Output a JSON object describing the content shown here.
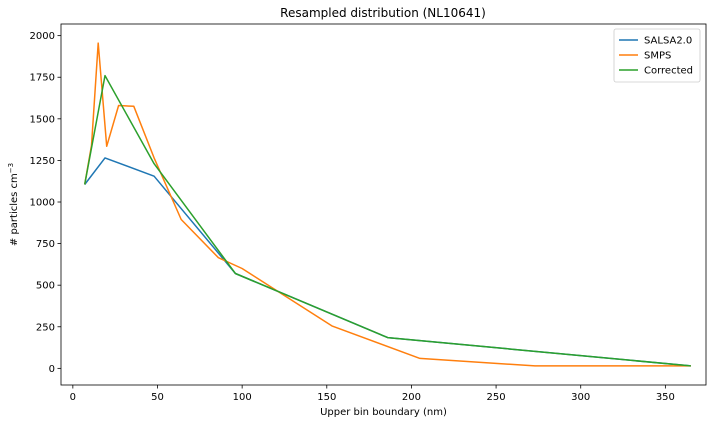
{
  "chart_data": {
    "type": "line",
    "title": "Resampled distribution (NL10641)",
    "xlabel": "Upper bin boundary (nm)",
    "ylabel": "# particles cm",
    "ylabel_superscript": "−3",
    "xlim": [
      -7,
      374
    ],
    "ylim": [
      -100,
      2070
    ],
    "xticks": [
      0,
      50,
      100,
      150,
      200,
      250,
      300,
      350
    ],
    "yticks": [
      0,
      250,
      500,
      750,
      1000,
      1250,
      1500,
      1750,
      2000
    ],
    "legend_position": "top-right",
    "series": [
      {
        "name": "SALSA2.0",
        "color": "#1f77b4",
        "x": [
          7,
          19,
          48,
          96,
          186,
          365
        ],
        "y": [
          1105,
          1265,
          1155,
          570,
          185,
          15
        ]
      },
      {
        "name": "SMPS",
        "color": "#ff7f0e",
        "x": [
          7,
          11,
          15,
          20,
          27,
          36,
          48,
          64,
          86,
          100,
          153,
          205,
          273,
          365
        ],
        "y": [
          1105,
          1340,
          1955,
          1335,
          1580,
          1575,
          1265,
          895,
          665,
          600,
          255,
          60,
          15,
          15
        ]
      },
      {
        "name": "Corrected",
        "color": "#2ca02c",
        "x": [
          7,
          19,
          48,
          96,
          186,
          365
        ],
        "y": [
          1105,
          1760,
          1230,
          570,
          185,
          15
        ]
      }
    ]
  }
}
